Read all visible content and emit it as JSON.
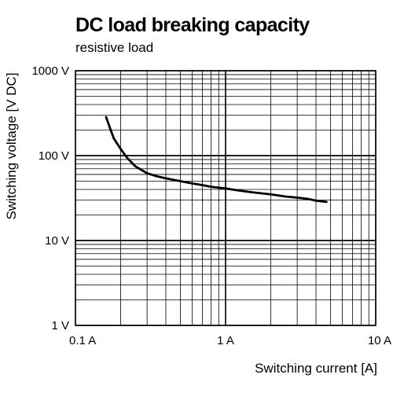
{
  "chart_data": {
    "type": "line",
    "title": "DC load breaking capacity",
    "subtitle": "resistive load",
    "xlabel": "Switching current [A]",
    "ylabel": "Switching voltage [V DC]",
    "x_scale": "log",
    "y_scale": "log",
    "xlim": [
      0.1,
      10
    ],
    "ylim": [
      1,
      1000
    ],
    "x_ticks": [
      {
        "value": 0.1,
        "label": "0.1 A"
      },
      {
        "value": 1,
        "label": "1 A"
      },
      {
        "value": 10,
        "label": "10 A"
      }
    ],
    "y_ticks": [
      {
        "value": 1,
        "label": "1 V"
      },
      {
        "value": 10,
        "label": "10 V"
      },
      {
        "value": 100,
        "label": "100 V"
      },
      {
        "value": 1000,
        "label": "1000 V"
      }
    ],
    "grid": true,
    "line_color": "#000000",
    "series": [
      {
        "x": [
          0.16,
          0.17,
          0.18,
          0.2,
          0.22,
          0.25,
          0.3,
          0.35,
          0.4,
          0.5,
          0.6,
          0.7,
          0.8,
          1.0,
          1.2,
          1.5,
          2.0,
          2.5,
          3.0,
          3.5,
          4.0,
          4.7
        ],
        "y": [
          285,
          210,
          160,
          120,
          95,
          75,
          62,
          57,
          54,
          50,
          47,
          45,
          43,
          41,
          39,
          37,
          35,
          33,
          32,
          31,
          29.5,
          28.5
        ]
      }
    ]
  }
}
